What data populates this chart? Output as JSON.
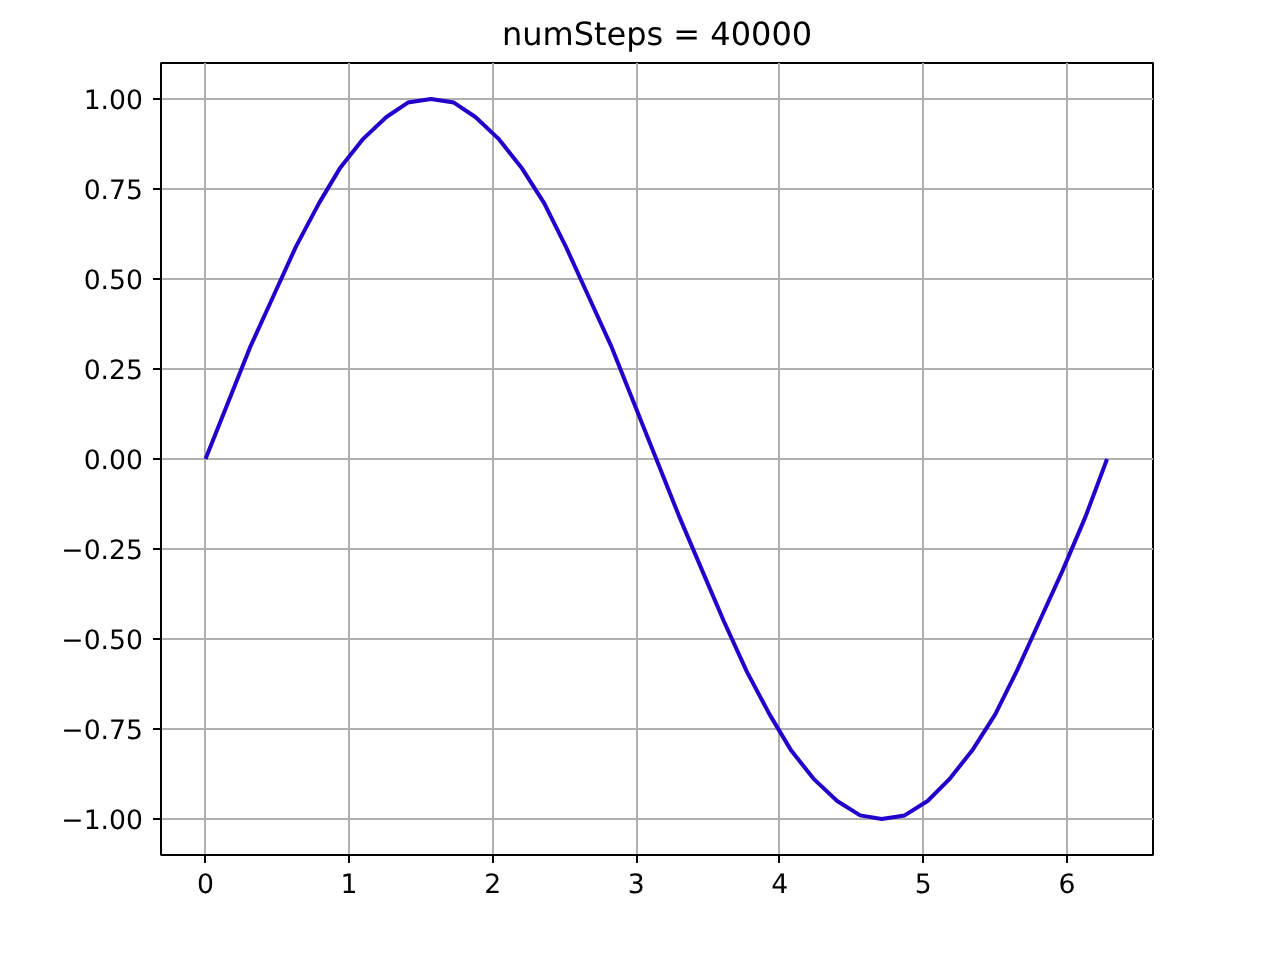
{
  "chart_data": {
    "type": "line",
    "title": "numSteps = 40000",
    "x": [
      0,
      0.16,
      0.31,
      0.47,
      0.63,
      0.79,
      0.94,
      1.1,
      1.26,
      1.41,
      1.57,
      1.73,
      1.88,
      2.04,
      2.2,
      2.36,
      2.51,
      2.67,
      2.83,
      2.98,
      3.14,
      3.3,
      3.46,
      3.61,
      3.77,
      3.93,
      4.08,
      4.24,
      4.4,
      4.56,
      4.71,
      4.87,
      5.03,
      5.18,
      5.34,
      5.5,
      5.65,
      5.81,
      5.97,
      6.13,
      6.28
    ],
    "series": [
      {
        "color": "#2200cc",
        "values": [
          0,
          0.16,
          0.31,
          0.45,
          0.59,
          0.71,
          0.81,
          0.89,
          0.95,
          0.99,
          1,
          0.99,
          0.95,
          0.89,
          0.81,
          0.71,
          0.59,
          0.45,
          0.31,
          0.16,
          0,
          -0.16,
          -0.31,
          -0.45,
          -0.59,
          -0.71,
          -0.81,
          -0.89,
          -0.95,
          -0.99,
          -1,
          -0.99,
          -0.95,
          -0.89,
          -0.81,
          -0.71,
          -0.59,
          -0.45,
          -0.31,
          -0.16,
          0
        ]
      }
    ],
    "xlim": [
      -0.31,
      6.6
    ],
    "ylim": [
      -1.1,
      1.1
    ],
    "xticks": [
      0,
      1,
      2,
      3,
      4,
      5,
      6
    ],
    "yticks": [
      {
        "value": -1,
        "label": "−1.00"
      },
      {
        "value": -0.75,
        "label": "−0.75"
      },
      {
        "value": -0.5,
        "label": "−0.50"
      },
      {
        "value": -0.25,
        "label": "−0.25"
      },
      {
        "value": 0,
        "label": "0.00"
      },
      {
        "value": 0.25,
        "label": "0.25"
      },
      {
        "value": 0.5,
        "label": "0.50"
      },
      {
        "value": 0.75,
        "label": "0.75"
      },
      {
        "value": 1,
        "label": "1.00"
      }
    ],
    "grid": true,
    "marker": "none",
    "line_style": "solid"
  }
}
